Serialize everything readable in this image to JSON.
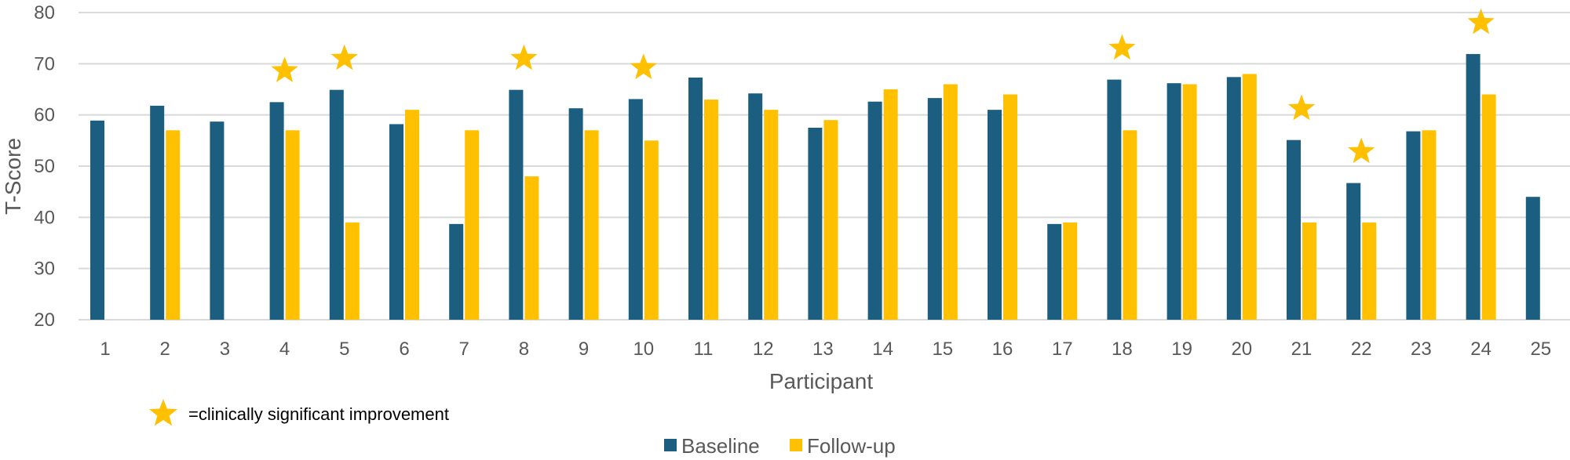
{
  "chart_data": {
    "type": "bar",
    "xlabel": "Participant",
    "ylabel": "T-Score",
    "ylim": [
      20,
      80
    ],
    "yticks": [
      20,
      30,
      40,
      50,
      60,
      70,
      80
    ],
    "grid": true,
    "categories": [
      "1",
      "2",
      "3",
      "4",
      "5",
      "6",
      "7",
      "8",
      "9",
      "10",
      "11",
      "12",
      "13",
      "14",
      "15",
      "16",
      "17",
      "18",
      "19",
      "20",
      "21",
      "22",
      "23",
      "24",
      "25"
    ],
    "series": [
      {
        "name": "Baseline",
        "color": "#1b5e80",
        "values": [
          58.9,
          61.8,
          58.7,
          62.5,
          64.9,
          58.2,
          38.7,
          64.9,
          61.3,
          63.1,
          67.3,
          64.2,
          57.5,
          62.6,
          63.3,
          61.0,
          38.7,
          66.9,
          66.2,
          67.4,
          55.1,
          46.7,
          56.8,
          71.9,
          44.0
        ]
      },
      {
        "name": "Follow-up",
        "color": "#ffc000",
        "values": [
          null,
          57,
          null,
          57,
          39,
          61,
          57,
          48,
          57,
          55,
          63,
          61,
          59,
          65,
          66,
          64,
          39,
          57,
          66,
          68,
          39,
          39,
          57,
          64,
          null
        ]
      }
    ],
    "significant_improvement": {
      "participants": [
        "4",
        "5",
        "8",
        "10",
        "18",
        "21",
        "22",
        "24"
      ],
      "marker": "star",
      "marker_color": "#ffc000",
      "note": "=clinically significant improvement"
    },
    "legend": {
      "position": "bottom-center",
      "entries": [
        "Baseline",
        "Follow-up"
      ]
    }
  }
}
